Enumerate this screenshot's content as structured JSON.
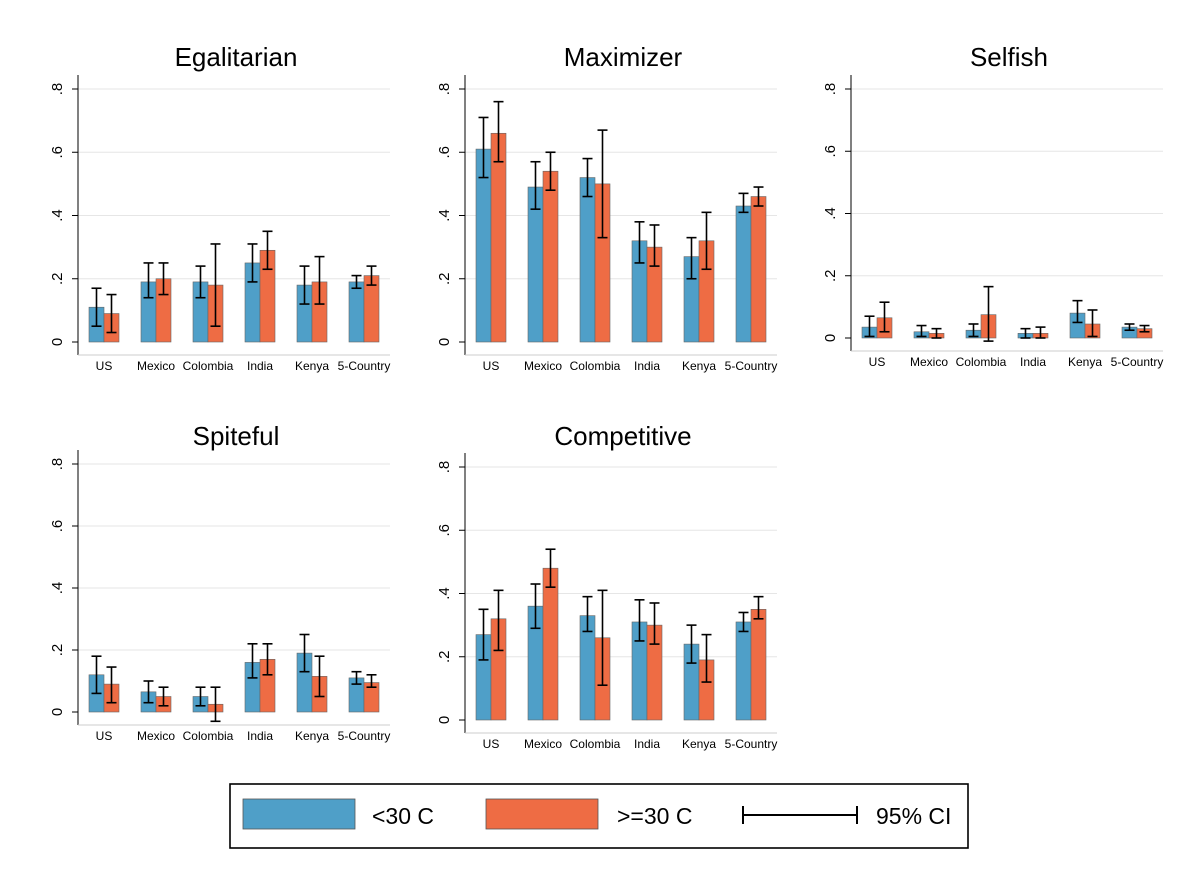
{
  "chart_data": [
    {
      "type": "bar",
      "title": "Egalitarian",
      "categories": [
        "US",
        "Mexico",
        "Colombia",
        "India",
        "Kenya",
        "5-Country"
      ],
      "yticks": [
        "0",
        ".2",
        ".4",
        ".6",
        ".8"
      ],
      "ylim": [
        0,
        0.8
      ],
      "grid": true,
      "series": [
        {
          "name": "<30 C",
          "values": [
            0.11,
            0.19,
            0.19,
            0.25,
            0.18,
            0.19
          ],
          "ci_low": [
            0.05,
            0.14,
            0.14,
            0.19,
            0.12,
            0.17
          ],
          "ci_high": [
            0.17,
            0.25,
            0.24,
            0.31,
            0.24,
            0.21
          ]
        },
        {
          "name": ">=30 C",
          "values": [
            0.09,
            0.2,
            0.18,
            0.29,
            0.19,
            0.21
          ],
          "ci_low": [
            0.03,
            0.15,
            0.05,
            0.23,
            0.12,
            0.18
          ],
          "ci_high": [
            0.15,
            0.25,
            0.31,
            0.35,
            0.27,
            0.24
          ]
        }
      ]
    },
    {
      "type": "bar",
      "title": "Maximizer",
      "categories": [
        "US",
        "Mexico",
        "Colombia",
        "India",
        "Kenya",
        "5-Country"
      ],
      "yticks": [
        "0",
        ".2",
        ".4",
        ".6",
        ".8"
      ],
      "ylim": [
        0,
        0.8
      ],
      "grid": true,
      "series": [
        {
          "name": "<30 C",
          "values": [
            0.61,
            0.49,
            0.52,
            0.32,
            0.27,
            0.43
          ],
          "ci_low": [
            0.52,
            0.42,
            0.46,
            0.25,
            0.2,
            0.41
          ],
          "ci_high": [
            0.71,
            0.57,
            0.58,
            0.38,
            0.33,
            0.47
          ]
        },
        {
          "name": ">=30 C",
          "values": [
            0.66,
            0.54,
            0.5,
            0.3,
            0.32,
            0.46
          ],
          "ci_low": [
            0.57,
            0.48,
            0.33,
            0.24,
            0.23,
            0.43
          ],
          "ci_high": [
            0.76,
            0.6,
            0.67,
            0.37,
            0.41,
            0.49
          ]
        }
      ]
    },
    {
      "type": "bar",
      "title": "Selfish",
      "categories": [
        "US",
        "Mexico",
        "Colombia",
        "India",
        "Kenya",
        "5-Country"
      ],
      "yticks": [
        "0",
        ".2",
        ".4",
        ".6",
        ".8"
      ],
      "ylim": [
        0,
        0.8
      ],
      "grid": true,
      "series": [
        {
          "name": "<30 C",
          "values": [
            0.035,
            0.02,
            0.025,
            0.015,
            0.08,
            0.035
          ],
          "ci_low": [
            0.005,
            0.005,
            0.005,
            0.0,
            0.05,
            0.025
          ],
          "ci_high": [
            0.07,
            0.04,
            0.045,
            0.03,
            0.12,
            0.045
          ]
        },
        {
          "name": ">=30 C",
          "values": [
            0.065,
            0.015,
            0.075,
            0.015,
            0.045,
            0.03
          ],
          "ci_low": [
            0.02,
            0.0,
            -0.01,
            0.0,
            0.005,
            0.02
          ],
          "ci_high": [
            0.115,
            0.03,
            0.165,
            0.035,
            0.09,
            0.04
          ]
        }
      ]
    },
    {
      "type": "bar",
      "title": "Spiteful",
      "categories": [
        "US",
        "Mexico",
        "Colombia",
        "India",
        "Kenya",
        "5-Country"
      ],
      "yticks": [
        "0",
        ".2",
        ".4",
        ".6",
        ".8"
      ],
      "ylim": [
        0,
        0.8
      ],
      "grid": true,
      "series": [
        {
          "name": "<30 C",
          "values": [
            0.12,
            0.065,
            0.05,
            0.16,
            0.19,
            0.11
          ],
          "ci_low": [
            0.06,
            0.03,
            0.02,
            0.11,
            0.13,
            0.09
          ],
          "ci_high": [
            0.18,
            0.1,
            0.08,
            0.22,
            0.25,
            0.13
          ]
        },
        {
          "name": ">=30 C",
          "values": [
            0.09,
            0.05,
            0.025,
            0.17,
            0.115,
            0.095
          ],
          "ci_low": [
            0.03,
            0.02,
            -0.03,
            0.12,
            0.05,
            0.08
          ],
          "ci_high": [
            0.145,
            0.08,
            0.08,
            0.22,
            0.18,
            0.12
          ]
        }
      ]
    },
    {
      "type": "bar",
      "title": "Competitive",
      "categories": [
        "US",
        "Mexico",
        "Colombia",
        "India",
        "Kenya",
        "5-Country"
      ],
      "yticks": [
        "0",
        ".2",
        ".4",
        ".6",
        ".8"
      ],
      "ylim": [
        0,
        0.8
      ],
      "grid": true,
      "series": [
        {
          "name": "<30 C",
          "values": [
            0.27,
            0.36,
            0.33,
            0.31,
            0.24,
            0.31
          ],
          "ci_low": [
            0.19,
            0.29,
            0.28,
            0.25,
            0.18,
            0.28
          ],
          "ci_high": [
            0.35,
            0.43,
            0.39,
            0.38,
            0.3,
            0.34
          ]
        },
        {
          "name": ">=30 C",
          "values": [
            0.32,
            0.48,
            0.26,
            0.3,
            0.19,
            0.35
          ],
          "ci_low": [
            0.22,
            0.42,
            0.11,
            0.24,
            0.12,
            0.32
          ],
          "ci_high": [
            0.41,
            0.54,
            0.41,
            0.37,
            0.27,
            0.39
          ]
        }
      ]
    }
  ],
  "legend": {
    "items": [
      {
        "label": "<30 C",
        "color": "#4F9FC8"
      },
      {
        "label": ">=30 C",
        "color": "#EE6C44"
      }
    ],
    "ci_label": "95% CI"
  },
  "colors": {
    "bar_low": "#4F9FC8",
    "bar_high": "#EE6C44",
    "grid": "#e6e6e6",
    "axis": "#000000"
  }
}
